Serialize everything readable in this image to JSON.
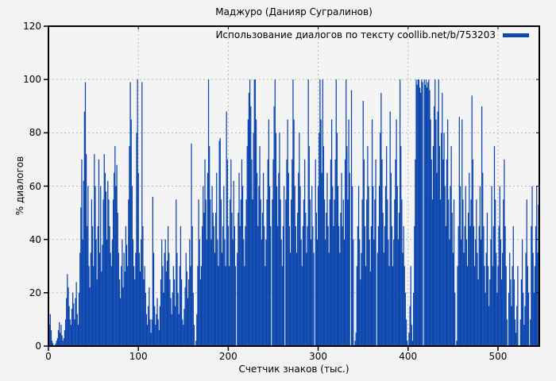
{
  "chart_data": {
    "type": "bar",
    "style": "impulses",
    "title": "Маджуро (Данияр Сугралинов)",
    "xlabel": "Счетчик знаков (тыс.)",
    "ylabel": "% диалогов",
    "legend": {
      "label": "Использование диалогов по тексту coollib.net/b/753203",
      "position": "top-right-inside"
    },
    "xlim": [
      0,
      546
    ],
    "ylim": [
      0,
      120
    ],
    "xticks": [
      0,
      100,
      200,
      300,
      400,
      500
    ],
    "yticks": [
      0,
      20,
      40,
      60,
      80,
      100,
      120
    ],
    "grid": true,
    "x_start": 0,
    "x_step": 1,
    "bar_color": "#0d47ae",
    "background_color": "#f2f2f2",
    "grid_color": "#b8b8b8",
    "frame_color": "#000000",
    "values": [
      5,
      8,
      12,
      6,
      2,
      1,
      0,
      0,
      1,
      2,
      3,
      6,
      9,
      5,
      8,
      4,
      2,
      3,
      6,
      10,
      18,
      27,
      22,
      15,
      10,
      8,
      14,
      20,
      16,
      10,
      18,
      24,
      12,
      8,
      20,
      35,
      52,
      70,
      40,
      62,
      88,
      99,
      72,
      45,
      60,
      30,
      22,
      35,
      55,
      45,
      30,
      72,
      60,
      40,
      25,
      45,
      70,
      35,
      60,
      28,
      38,
      55,
      72,
      65,
      58,
      40,
      62,
      55,
      45,
      35,
      30,
      40,
      55,
      65,
      75,
      60,
      68,
      50,
      35,
      25,
      18,
      30,
      40,
      22,
      35,
      28,
      45,
      38,
      30,
      55,
      75,
      99,
      85,
      60,
      40,
      30,
      25,
      35,
      80,
      100,
      65,
      35,
      28,
      40,
      99,
      45,
      25,
      30,
      20,
      12,
      8,
      15,
      22,
      10,
      5,
      10,
      56,
      35,
      15,
      8,
      12,
      18,
      10,
      6,
      15,
      25,
      40,
      30,
      20,
      35,
      40,
      28,
      32,
      45,
      35,
      25,
      18,
      12,
      20,
      30,
      25,
      15,
      55,
      35,
      20,
      12,
      30,
      45,
      25,
      10,
      8,
      14,
      22,
      35,
      28,
      18,
      25,
      40,
      30,
      76,
      45,
      20,
      8,
      0,
      2,
      12,
      30,
      55,
      40,
      25,
      30,
      45,
      60,
      50,
      70,
      55,
      40,
      65,
      100,
      75,
      55,
      40,
      60,
      50,
      45,
      35,
      50,
      65,
      40,
      30,
      77,
      78,
      55,
      35,
      45,
      60,
      40,
      30,
      88,
      70,
      45,
      30,
      55,
      70,
      50,
      40,
      62,
      45,
      30,
      0,
      35,
      50,
      65,
      45,
      55,
      70,
      60,
      40,
      30,
      45,
      55,
      75,
      85,
      95,
      100,
      90,
      70,
      55,
      80,
      100,
      100,
      85,
      65,
      45,
      60,
      75,
      55,
      40,
      50,
      65,
      45,
      30,
      40,
      55,
      70,
      85,
      60,
      45,
      0,
      55,
      70,
      90,
      100,
      80,
      60,
      45,
      65,
      80,
      55,
      40,
      30,
      45,
      60,
      0,
      55,
      70,
      85,
      65,
      45,
      35,
      55,
      70,
      100,
      85,
      60,
      45,
      35,
      50,
      65,
      80,
      60,
      40,
      30,
      45,
      55,
      70,
      50,
      35,
      45,
      100,
      75,
      55,
      40,
      60,
      45,
      35,
      0,
      70,
      50,
      40,
      60,
      80,
      100,
      85,
      65,
      100,
      75,
      55,
      40,
      50,
      65,
      45,
      35,
      55,
      70,
      85,
      60,
      45,
      55,
      70,
      100,
      80,
      60,
      45,
      35,
      50,
      65,
      45,
      55,
      40,
      70,
      100,
      75,
      55,
      85,
      65,
      0,
      96,
      60,
      40,
      0,
      2,
      5,
      30,
      45,
      60,
      40,
      25,
      35,
      55,
      92,
      70,
      45,
      30,
      55,
      75,
      60,
      40,
      28,
      45,
      85,
      60,
      40,
      55,
      70,
      0,
      35,
      45,
      60,
      80,
      95,
      70,
      50,
      35,
      45,
      60,
      75,
      55,
      40,
      30,
      88,
      65,
      45,
      30,
      40,
      55,
      70,
      85,
      60,
      40,
      50,
      100,
      75,
      55,
      35,
      45,
      30,
      20,
      10,
      2,
      0,
      5,
      15,
      30,
      8,
      2,
      20,
      45,
      70,
      100,
      98,
      100,
      100,
      97,
      95,
      100,
      99,
      0,
      100,
      98,
      100,
      97,
      99,
      100,
      96,
      85,
      70,
      55,
      75,
      90,
      100,
      85,
      65,
      88,
      100,
      75,
      55,
      80,
      95,
      70,
      80,
      60,
      45,
      70,
      85,
      55,
      40,
      60,
      75,
      50,
      35,
      55,
      20,
      0,
      2,
      30,
      45,
      86,
      60,
      40,
      85,
      55,
      35,
      45,
      60,
      40,
      30,
      50,
      65,
      45,
      55,
      94,
      70,
      45,
      30,
      40,
      55,
      35,
      25,
      45,
      60,
      40,
      90,
      65,
      45,
      30,
      20,
      35,
      50,
      30,
      15,
      25,
      40,
      60,
      30,
      45,
      75,
      55,
      35,
      20,
      30,
      45,
      60,
      40,
      25,
      35,
      55,
      70,
      45,
      30,
      10,
      0,
      20,
      35,
      25,
      15,
      30,
      45,
      25,
      10,
      5,
      15,
      30,
      0,
      0,
      10,
      25,
      40,
      20,
      8,
      15,
      35,
      55,
      30,
      20,
      0,
      10,
      45,
      60,
      35,
      20,
      30,
      45,
      60,
      35,
      53
    ]
  }
}
